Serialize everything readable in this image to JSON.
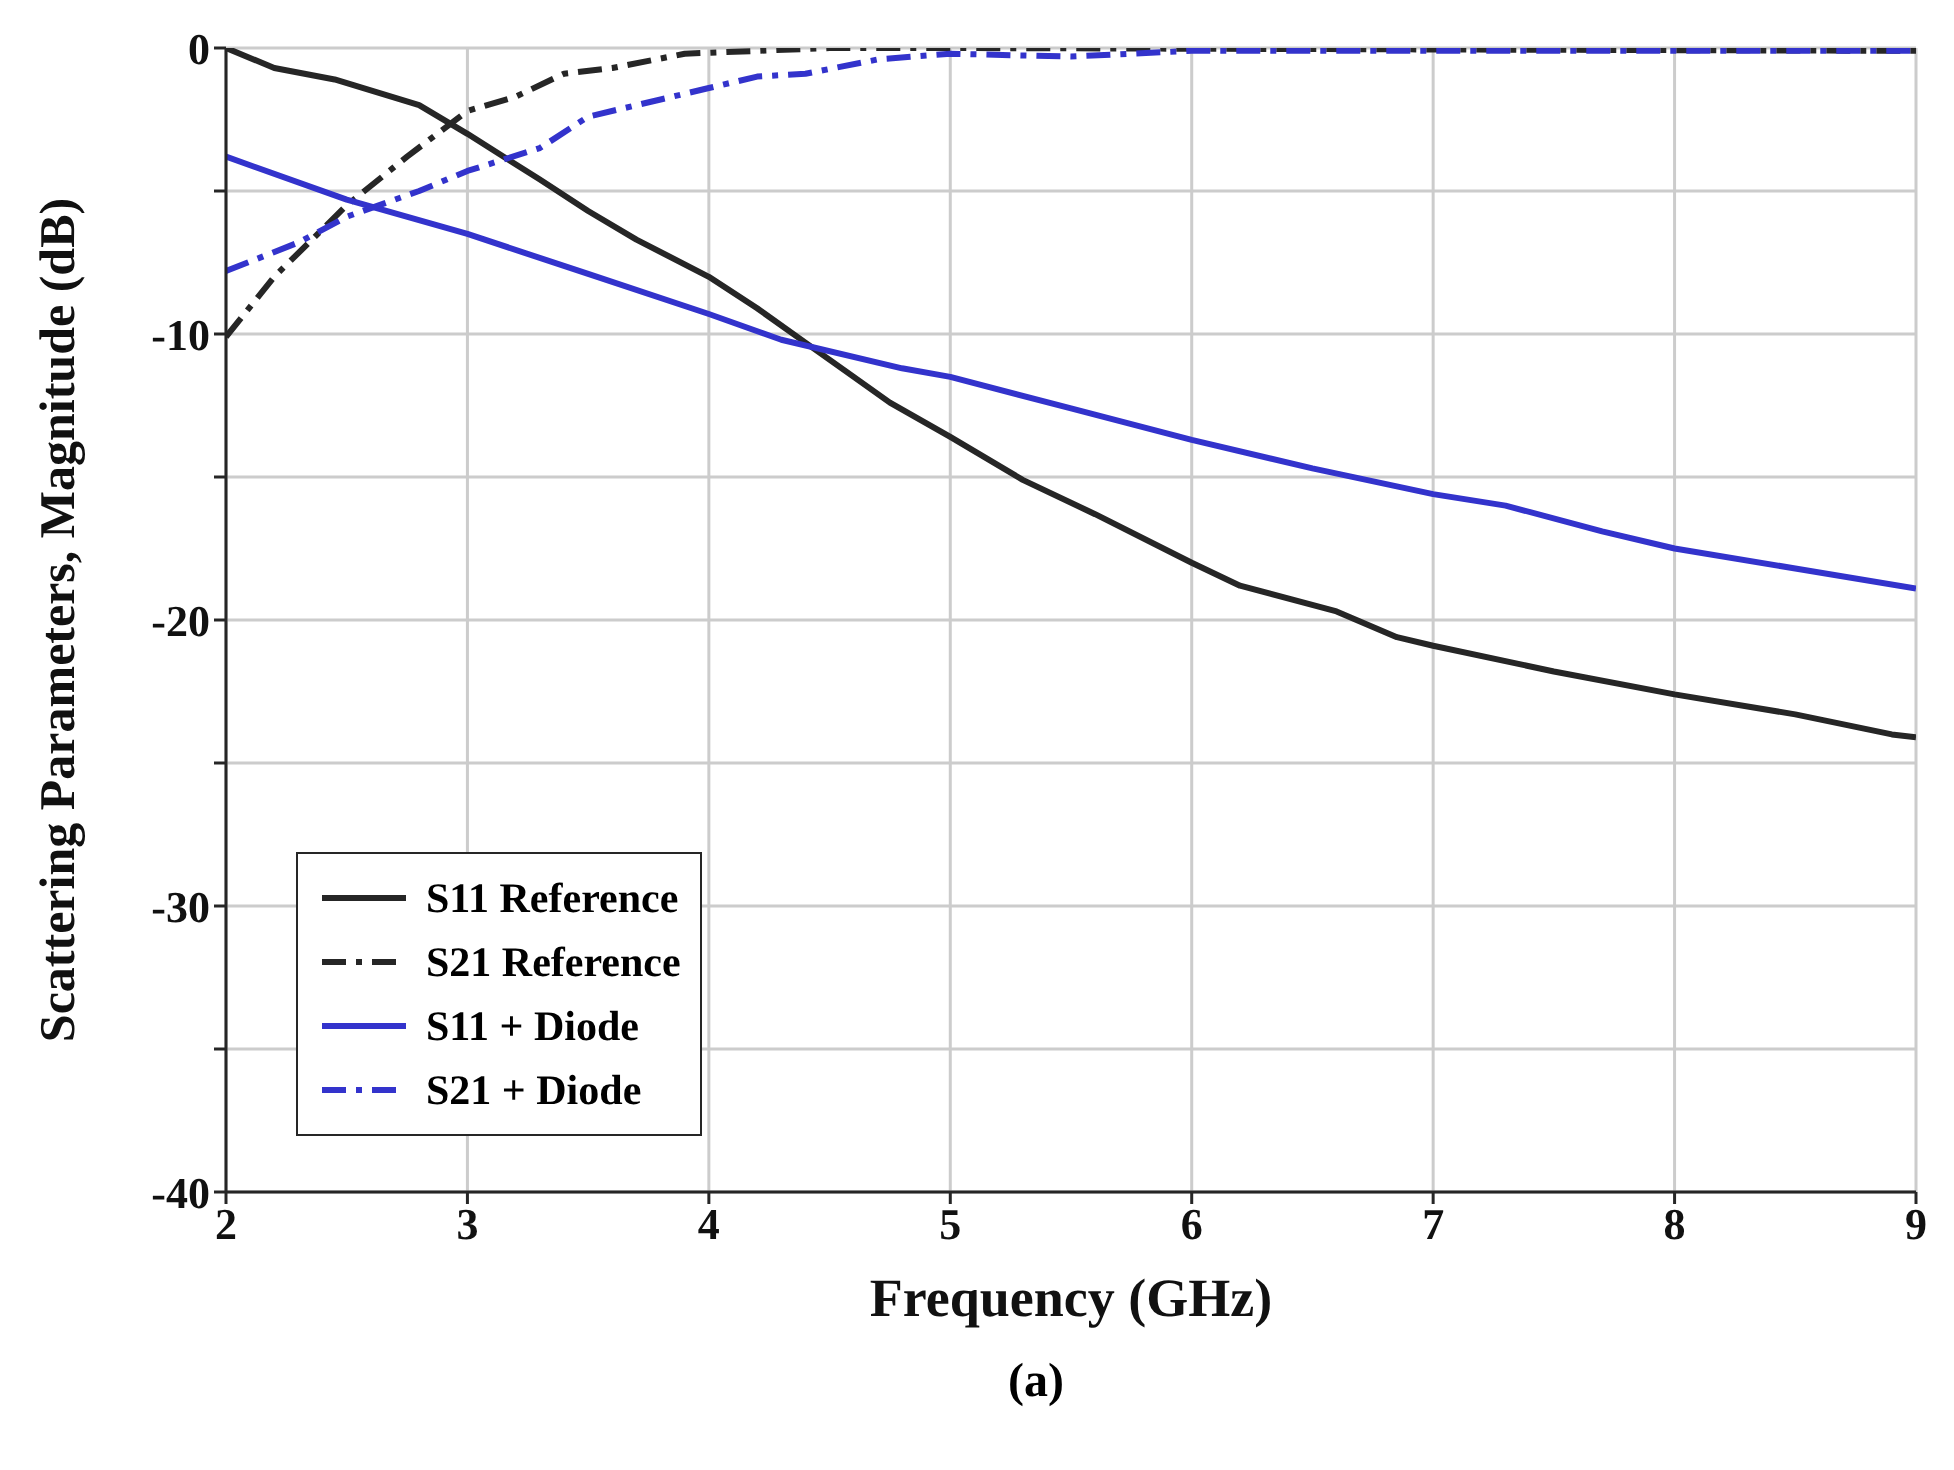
{
  "chart_data": {
    "type": "line",
    "xlabel": "Frequency (GHz)",
    "ylabel": "Scattering Parameters, Magnitude (dB)",
    "annotations": [
      "(a)"
    ],
    "xlim": [
      2,
      9
    ],
    "xticks": [
      2,
      3,
      4,
      5,
      6,
      7,
      8,
      9
    ],
    "ylim": [
      -40,
      0
    ],
    "yticks": [
      -40,
      {
        "value": -35,
        "label": null
      },
      -30,
      {
        "value": -25,
        "label": null
      },
      -20,
      {
        "value": -15,
        "label": null
      },
      -10,
      {
        "value": -5,
        "label": null
      },
      0
    ],
    "grid": true,
    "legend": "bottom left",
    "marker": "none",
    "series": [
      {
        "name": "S11 Reference",
        "color": "#262626",
        "line_style": "solid",
        "x": [
          2,
          2.2,
          2.45,
          2.8,
          3,
          3.3,
          3.5,
          3.7,
          4,
          4.2,
          4.4,
          4.6,
          4.75,
          5,
          5.3,
          5.6,
          6,
          6.2,
          6.6,
          6.85,
          7,
          7.5,
          8,
          8.5,
          8.9,
          9
        ],
        "values": [
          0,
          -0.7,
          -1.1,
          -2,
          -3,
          -4.6,
          -5.7,
          -6.7,
          -8,
          -9.1,
          -10.3,
          -11.5,
          -12.4,
          -13.6,
          -15.1,
          -16.3,
          -18,
          -18.8,
          -19.7,
          -20.6,
          -20.9,
          -21.8,
          -22.6,
          -23.3,
          -24,
          -24.1
        ]
      },
      {
        "name": "S21 Reference",
        "color": "#262626",
        "line_style": "dashed",
        "x": [
          2,
          2.2,
          2.5,
          2.75,
          3,
          3.2,
          3.4,
          3.6,
          3.9,
          4.2,
          4.5,
          5,
          9
        ],
        "values": [
          -10.1,
          -8,
          -5.5,
          -3.8,
          -2.2,
          -1.7,
          -0.9,
          -0.7,
          -0.2,
          -0.1,
          0,
          0,
          -0.1
        ]
      },
      {
        "name": "S11 + Diode",
        "color": "#3333cc",
        "line_style": "solid",
        "x": [
          2,
          2.5,
          3,
          3.5,
          4,
          4.3,
          4.8,
          5,
          5.5,
          6,
          6.5,
          7,
          7.3,
          7.7,
          8,
          8.5,
          9
        ],
        "values": [
          -3.8,
          -5.3,
          -6.5,
          -7.9,
          -9.3,
          -10.2,
          -11.2,
          -11.5,
          -12.6,
          -13.7,
          -14.7,
          -15.6,
          -16,
          -16.9,
          -17.5,
          -18.2,
          -18.9
        ]
      },
      {
        "name": "S21 + Diode",
        "color": "#3333cc",
        "line_style": "dashed",
        "x": [
          2,
          2.3,
          2.5,
          2.8,
          3,
          3.3,
          3.5,
          3.8,
          4,
          4.2,
          4.4,
          4.7,
          5,
          5.5,
          6,
          9
        ],
        "values": [
          -7.8,
          -6.8,
          -5.9,
          -5,
          -4.3,
          -3.5,
          -2.4,
          -1.8,
          -1.4,
          -1,
          -0.9,
          -0.4,
          -0.2,
          -0.3,
          -0.1,
          -0.1
        ]
      }
    ]
  }
}
